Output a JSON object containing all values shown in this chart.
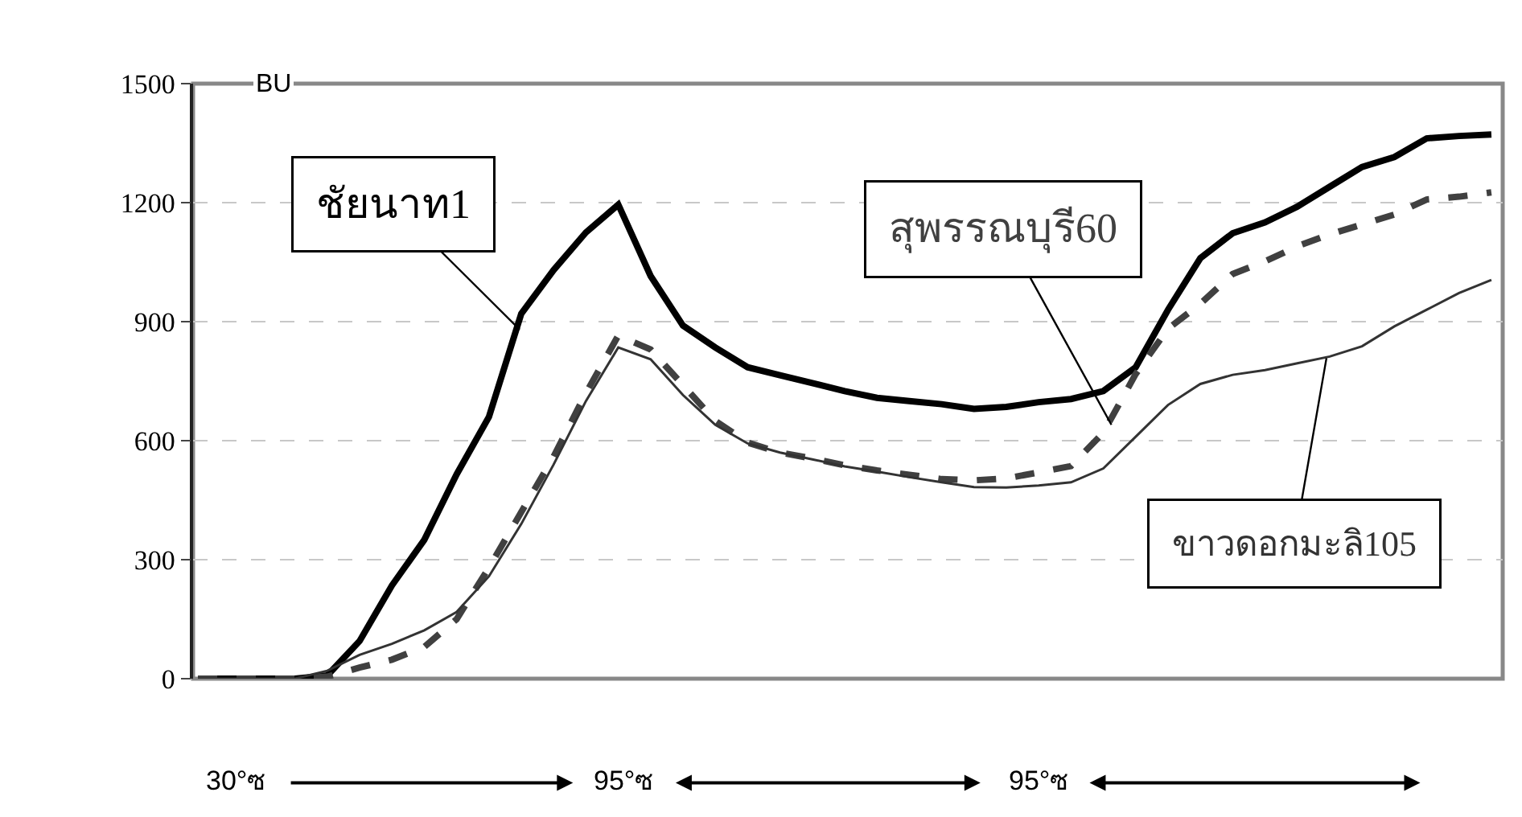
{
  "chart_data": {
    "type": "line",
    "ylabel": "BU",
    "categories": [
      null,
      null,
      null,
      null,
      null,
      null,
      null,
      null,
      null,
      null,
      null,
      null,
      null,
      null,
      null,
      null,
      null,
      null,
      null,
      null,
      null,
      null,
      null,
      null,
      null,
      null,
      null,
      null,
      null,
      null,
      null,
      null,
      null,
      null,
      null,
      null,
      null,
      null,
      null,
      null,
      null
    ],
    "series": [
      {
        "name": "ชัยนาท1",
        "color": "#000000",
        "line_style": "solid",
        "values": [
          0,
          0,
          0,
          0,
          8,
          95,
          235,
          350,
          515,
          660,
          920,
          1030,
          1125,
          1195,
          1015,
          890,
          835,
          785,
          765,
          745,
          725,
          708,
          700,
          692,
          680,
          685,
          697,
          705,
          725,
          785,
          930,
          1060,
          1123,
          1150,
          1190,
          1240,
          1290,
          1315,
          1362,
          1368,
          1372
        ]
      },
      {
        "name": "สุพรรณบุรี60",
        "color": "#404040",
        "line_style": "dashed",
        "values": [
          0,
          0,
          0,
          0,
          5,
          28,
          48,
          80,
          150,
          280,
          420,
          560,
          720,
          865,
          830,
          740,
          650,
          595,
          570,
          555,
          538,
          525,
          514,
          503,
          500,
          505,
          520,
          536,
          620,
          768,
          882,
          945,
          1020,
          1052,
          1090,
          1120,
          1145,
          1170,
          1208,
          1215,
          1226
        ]
      },
      {
        "name": "ขาวดอกมะลิ105",
        "color": "#333333",
        "line_style": "solid",
        "values": [
          0,
          0,
          0,
          0,
          20,
          60,
          88,
          122,
          168,
          258,
          390,
          540,
          700,
          835,
          805,
          715,
          640,
          593,
          570,
          553,
          535,
          522,
          508,
          495,
          483,
          482,
          487,
          495,
          530,
          610,
          690,
          743,
          766,
          778,
          795,
          812,
          838,
          888,
          930,
          972,
          1005
        ]
      }
    ],
    "ylim": [
      0,
      1500
    ],
    "yticks": [
      0,
      300,
      600,
      900,
      1200,
      1500
    ],
    "grid": "y",
    "legend": false,
    "tick_labels": "y",
    "marker": "none",
    "annotations": [
      "30°ซ",
      "95°ซ",
      "95°ซ"
    ]
  }
}
